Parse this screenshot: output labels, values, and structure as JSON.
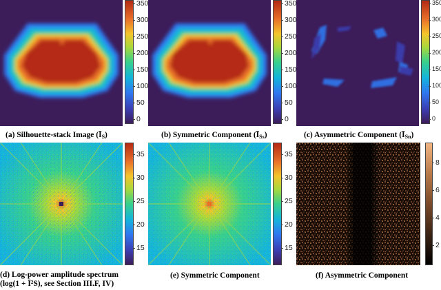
{
  "panels": [
    {
      "id": "a",
      "caption_prefix": "(a) Silhouette-stack Image (",
      "caption_symbol": "Ī",
      "caption_sub": "S",
      "caption_suffix": ")",
      "colorbar": {
        "min": 0,
        "max": 370,
        "ticks": [
          "350",
          "300",
          "250",
          "200",
          "150",
          "100",
          "50",
          "0"
        ]
      }
    },
    {
      "id": "b",
      "caption_prefix": "(b) Symmetric Component (",
      "caption_symbol": "Ī",
      "caption_sub": "Ss",
      "caption_suffix": ")",
      "colorbar": {
        "min": 0,
        "max": 370,
        "ticks": [
          "350",
          "300",
          "250",
          "200",
          "150",
          "100",
          "50",
          "0"
        ]
      }
    },
    {
      "id": "c",
      "caption_prefix": "(c) Asymmetric Component (",
      "caption_symbol": "Ī",
      "caption_sub": "Sn",
      "caption_suffix": ")",
      "colorbar": {
        "min": 0,
        "max": 370,
        "ticks": [
          "350",
          "300",
          "250",
          "200",
          "150",
          "100",
          "50",
          "0"
        ]
      }
    },
    {
      "id": "d",
      "caption_line1": "(d)   Log-power   amplitude   spectrum",
      "caption_line2": "(log(1 + Ī²S), see Section III.F, IV)",
      "colorbar": {
        "min": 11,
        "max": 37,
        "ticks": [
          "35",
          "30",
          "25",
          "20",
          "15"
        ]
      }
    },
    {
      "id": "e",
      "caption": "(e) Symmetric Component",
      "colorbar": {
        "min": 11,
        "max": 37,
        "ticks": [
          "35",
          "30",
          "25",
          "20",
          "15"
        ]
      }
    },
    {
      "id": "f",
      "caption": "(f) Asymmetric Component",
      "colorbar": {
        "min": 0.5,
        "max": 9.5,
        "ticks": [
          "8",
          "6",
          "4",
          "2"
        ]
      }
    }
  ],
  "colormaps": {
    "jet": [
      "#3d1c5a",
      "#3b3fb4",
      "#2f78f0",
      "#14b4dc",
      "#38d08c",
      "#a8d83c",
      "#f4c42c",
      "#e8702a",
      "#b42a14"
    ],
    "copper": [
      "#000000",
      "#3c2414",
      "#7a4a2a",
      "#b87a48",
      "#f0b482"
    ]
  }
}
